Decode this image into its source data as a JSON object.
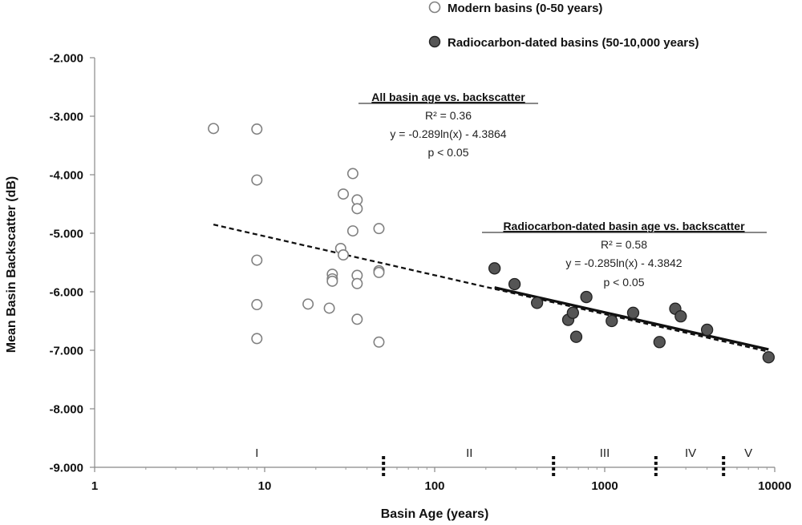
{
  "chart_data": {
    "type": "scatter",
    "xscale": "log",
    "xlabel": "Basin Age (years)",
    "ylabel": "Mean Basin Backscatter (dB)",
    "xlim": [
      1,
      10000
    ],
    "ylim": [
      -9.0,
      -2.0
    ],
    "xticks": [
      1,
      10,
      100,
      1000,
      10000
    ],
    "xtick_labels": [
      "1",
      "10",
      "100",
      "1000",
      "10000"
    ],
    "yticks": [
      -2,
      -3,
      -4,
      -5,
      -6,
      -7,
      -8,
      -9
    ],
    "ytick_labels": [
      "-2.000",
      "-3.000",
      "-4.000",
      "-5.000",
      "-6.000",
      "-7.000",
      "-8.000",
      "-9.000"
    ],
    "series": [
      {
        "name": "Modern basins (0-50 years)",
        "marker": "open-circle",
        "color": "#ffffff",
        "edge": "#808080",
        "points": [
          [
            5,
            -3.21
          ],
          [
            9,
            -3.22
          ],
          [
            9,
            -4.09
          ],
          [
            9,
            -5.46
          ],
          [
            9,
            -6.22
          ],
          [
            9,
            -6.8
          ],
          [
            18,
            -6.21
          ],
          [
            24,
            -6.28
          ],
          [
            25,
            -5.7
          ],
          [
            25,
            -5.78
          ],
          [
            25,
            -5.82
          ],
          [
            28,
            -5.26
          ],
          [
            29,
            -4.33
          ],
          [
            29,
            -5.37
          ],
          [
            33,
            -3.98
          ],
          [
            33,
            -4.96
          ],
          [
            35,
            -4.43
          ],
          [
            35,
            -4.58
          ],
          [
            35,
            -5.72
          ],
          [
            35,
            -5.86
          ],
          [
            35,
            -6.47
          ],
          [
            47,
            -4.92
          ],
          [
            47,
            -5.64
          ],
          [
            47,
            -5.67
          ],
          [
            47,
            -6.86
          ]
        ]
      },
      {
        "name": "Radiocarbon-dated basins (50-10,000 years)",
        "marker": "filled-circle",
        "color": "#555555",
        "edge": "#222222",
        "points": [
          [
            225,
            -5.6
          ],
          [
            295,
            -5.87
          ],
          [
            400,
            -6.19
          ],
          [
            610,
            -6.48
          ],
          [
            650,
            -6.36
          ],
          [
            680,
            -6.77
          ],
          [
            780,
            -6.09
          ],
          [
            1100,
            -6.5
          ],
          [
            1470,
            -6.36
          ],
          [
            2100,
            -6.86
          ],
          [
            2600,
            -6.29
          ],
          [
            2800,
            -6.42
          ],
          [
            4000,
            -6.65
          ],
          [
            9200,
            -7.12
          ]
        ]
      }
    ],
    "trendlines": [
      {
        "name": "All basin age vs. backscatter",
        "style": "dashed",
        "a": -0.289,
        "b": -4.3864,
        "x_range": [
          5,
          9200
        ]
      },
      {
        "name": "Radiocarbon-dated basin age vs. backscatter",
        "style": "solid",
        "a": -0.285,
        "b": -4.3842,
        "x_range": [
          225,
          9200
        ]
      }
    ],
    "annotations": {
      "all": {
        "title": "All basin age vs. backscatter",
        "r2": "R² = 0.36",
        "equation": "y = -0.289ln(x) - 4.3864",
        "p": "p < 0.05"
      },
      "radiocarbon": {
        "title": "Radiocarbon-dated  basin age vs. backscatter",
        "r2": "R² = 0.58",
        "equation": "y = -0.285ln(x) - 4.3842",
        "p": "p < 0.05"
      }
    },
    "regions": [
      {
        "label": "I",
        "x": 9
      },
      {
        "label": "II",
        "x": 160
      },
      {
        "label": "III",
        "x": 1000
      },
      {
        "label": "IV",
        "x": 3200
      },
      {
        "label": "V",
        "x": 7000
      }
    ],
    "region_boundaries": [
      50,
      500,
      2000,
      5000
    ],
    "legend": {
      "position": "top-right",
      "items": [
        "Modern basins (0-50 years)",
        "Radiocarbon-dated basins (50-10,000 years)"
      ]
    }
  }
}
